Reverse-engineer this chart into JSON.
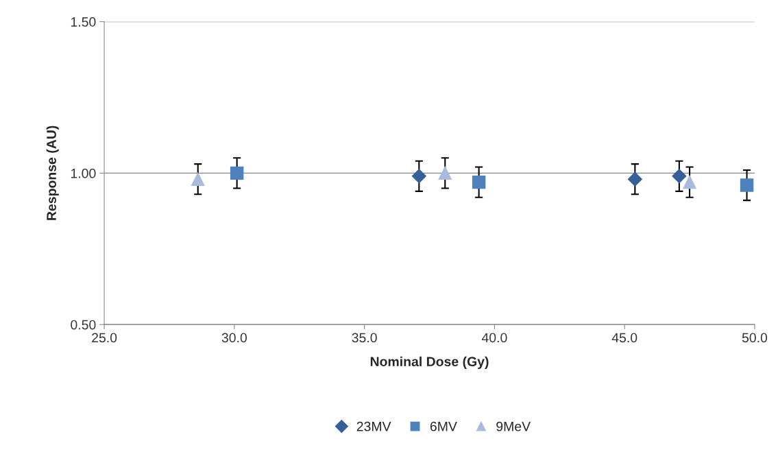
{
  "chart_data": {
    "type": "scatter",
    "xlabel": "Nominal Dose (Gy)",
    "ylabel": "Response (AU)",
    "xlim": [
      25,
      50
    ],
    "xticks": [
      {
        "value": 25,
        "label": "25.0"
      },
      {
        "value": 30,
        "label": "30.0"
      },
      {
        "value": 35,
        "label": "35.0"
      },
      {
        "value": 40,
        "label": "40.0"
      },
      {
        "value": 45,
        "label": "45.0"
      },
      {
        "value": 50,
        "label": "50.0"
      }
    ],
    "ylim": [
      0.5,
      1.5
    ],
    "yticks": [
      {
        "value": 0.5,
        "label": "0.50"
      },
      {
        "value": 1.0,
        "label": "1.00"
      },
      {
        "value": 1.5,
        "label": "1.50"
      }
    ],
    "grid": "y",
    "legend": "bottom",
    "series": [
      {
        "name": "23MV",
        "color": "#376099",
        "marker": "diamond",
        "x": [
          37.1,
          45.4,
          47.1
        ],
        "values": [
          0.99,
          0.98,
          0.99
        ],
        "errors": [
          0.05,
          0.05,
          0.05
        ]
      },
      {
        "name": "6MV",
        "color": "#4f81bd",
        "marker": "square",
        "x": [
          30.1,
          39.4,
          49.7
        ],
        "values": [
          1.0,
          0.97,
          0.96
        ],
        "errors": [
          0.05,
          0.05,
          0.05
        ]
      },
      {
        "name": "9MeV",
        "color": "#a9bbdc",
        "marker": "triangle",
        "x": [
          28.6,
          38.1,
          47.5
        ],
        "values": [
          0.98,
          1.0,
          0.97
        ],
        "errors": [
          0.05,
          0.05,
          0.05
        ]
      }
    ]
  }
}
